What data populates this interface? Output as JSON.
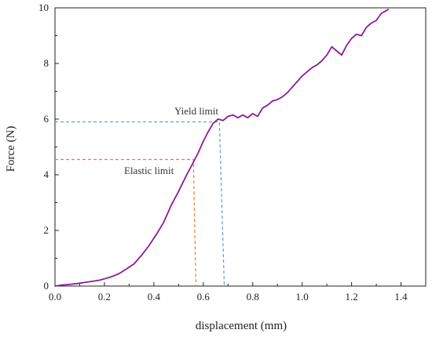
{
  "chart_data": {
    "type": "line",
    "title": "",
    "xlabel": "displacement (mm)",
    "ylabel": "Force (N)",
    "xlim": [
      0.0,
      1.5
    ],
    "ylim": [
      0,
      10
    ],
    "grid": false,
    "x_ticks": [
      "0.0",
      "0.2",
      "0.4",
      "0.6",
      "0.8",
      "1.0",
      "1.2",
      "1.4"
    ],
    "y_ticks": [
      "0",
      "2",
      "4",
      "6",
      "8",
      "10"
    ],
    "line_color": "#8B1A9C",
    "series": [
      {
        "x": [
          0.0,
          0.03,
          0.06,
          0.09,
          0.12,
          0.15,
          0.18,
          0.2,
          0.23,
          0.26,
          0.29,
          0.32,
          0.35,
          0.38,
          0.41,
          0.44,
          0.47,
          0.5,
          0.53,
          0.56,
          0.58,
          0.6,
          0.62,
          0.64,
          0.66,
          0.68,
          0.7,
          0.72,
          0.74,
          0.76,
          0.78,
          0.8,
          0.82,
          0.84,
          0.86,
          0.88,
          0.9,
          0.92,
          0.94,
          0.96,
          0.98,
          1.0,
          1.02,
          1.04,
          1.06,
          1.08,
          1.1,
          1.12,
          1.14,
          1.16,
          1.18,
          1.2,
          1.22,
          1.24,
          1.26,
          1.28,
          1.3,
          1.32,
          1.35
        ],
        "y": [
          0.0,
          0.04,
          0.06,
          0.09,
          0.13,
          0.17,
          0.21,
          0.26,
          0.34,
          0.45,
          0.62,
          0.8,
          1.1,
          1.45,
          1.85,
          2.3,
          2.9,
          3.4,
          3.95,
          4.45,
          4.8,
          5.2,
          5.55,
          5.85,
          6.0,
          5.95,
          6.1,
          6.15,
          6.05,
          6.15,
          6.05,
          6.2,
          6.1,
          6.4,
          6.5,
          6.65,
          6.7,
          6.8,
          6.95,
          7.15,
          7.35,
          7.55,
          7.7,
          7.85,
          7.95,
          8.1,
          8.3,
          8.6,
          8.45,
          8.3,
          8.65,
          8.9,
          9.05,
          9.0,
          9.3,
          9.45,
          9.55,
          9.8,
          9.95
        ]
      }
    ],
    "yield_limit": {
      "label": "Yield limit",
      "x": 0.685,
      "y": 5.9,
      "line_color": "#5B9BD5"
    },
    "elastic_limit": {
      "label": "Elastic limit",
      "x": 0.57,
      "y": 4.55,
      "line_color": "#ED7D31"
    }
  }
}
